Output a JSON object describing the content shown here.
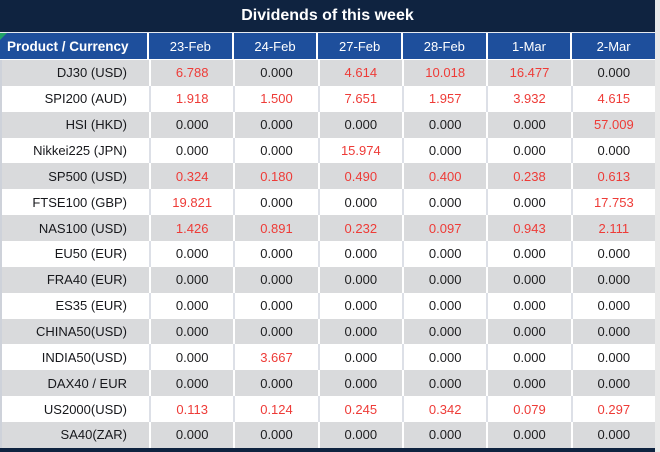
{
  "title": "Dividends of this week",
  "table": {
    "product_header": "Product / Currency",
    "date_headers": [
      "23-Feb",
      "24-Feb",
      "27-Feb",
      "28-Feb",
      "1-Mar",
      "2-Mar"
    ],
    "rows": [
      {
        "product": "DJ30 (USD)",
        "values": [
          "6.788",
          "0.000",
          "4.614",
          "10.018",
          "16.477",
          "0.000"
        ]
      },
      {
        "product": "SPI200 (AUD)",
        "values": [
          "1.918",
          "1.500",
          "7.651",
          "1.957",
          "3.932",
          "4.615"
        ]
      },
      {
        "product": "HSI (HKD)",
        "values": [
          "0.000",
          "0.000",
          "0.000",
          "0.000",
          "0.000",
          "57.009"
        ]
      },
      {
        "product": "Nikkei225 (JPN)",
        "values": [
          "0.000",
          "0.000",
          "15.974",
          "0.000",
          "0.000",
          "0.000"
        ]
      },
      {
        "product": "SP500 (USD)",
        "values": [
          "0.324",
          "0.180",
          "0.490",
          "0.400",
          "0.238",
          "0.613"
        ]
      },
      {
        "product": "FTSE100 (GBP)",
        "values": [
          "19.821",
          "0.000",
          "0.000",
          "0.000",
          "0.000",
          "17.753"
        ]
      },
      {
        "product": "NAS100 (USD)",
        "values": [
          "1.426",
          "0.891",
          "0.232",
          "0.097",
          "0.943",
          "2.111"
        ]
      },
      {
        "product": "EU50 (EUR)",
        "values": [
          "0.000",
          "0.000",
          "0.000",
          "0.000",
          "0.000",
          "0.000"
        ]
      },
      {
        "product": "FRA40 (EUR)",
        "values": [
          "0.000",
          "0.000",
          "0.000",
          "0.000",
          "0.000",
          "0.000"
        ]
      },
      {
        "product": "ES35 (EUR)",
        "values": [
          "0.000",
          "0.000",
          "0.000",
          "0.000",
          "0.000",
          "0.000"
        ]
      },
      {
        "product": "CHINA50(USD)",
        "values": [
          "0.000",
          "0.000",
          "0.000",
          "0.000",
          "0.000",
          "0.000"
        ]
      },
      {
        "product": "INDIA50(USD)",
        "values": [
          "0.000",
          "3.667",
          "0.000",
          "0.000",
          "0.000",
          "0.000"
        ]
      },
      {
        "product": "DAX40 / EUR",
        "values": [
          "0.000",
          "0.000",
          "0.000",
          "0.000",
          "0.000",
          "0.000"
        ]
      },
      {
        "product": "US2000(USD)",
        "values": [
          "0.113",
          "0.124",
          "0.245",
          "0.342",
          "0.079",
          "0.297"
        ]
      },
      {
        "product": "SA40(ZAR)",
        "values": [
          "0.000",
          "0.000",
          "0.000",
          "0.000",
          "0.000",
          "0.000"
        ]
      }
    ]
  },
  "colors": {
    "title_bg": "#0f2340",
    "header_bg": "#1e4f9c",
    "alt_row_bg": "#d9dadc",
    "positive_value": "#ee3b37",
    "zero_value": "#1d1d1f",
    "corner_marker": "#21a366"
  },
  "icons": {
    "green_corner_marker": "triangle-top-left"
  },
  "chart_data": {
    "type": "table",
    "title": "Dividends of this week",
    "columns": [
      "Product / Currency",
      "23-Feb",
      "24-Feb",
      "27-Feb",
      "28-Feb",
      "1-Mar",
      "2-Mar"
    ],
    "rows": [
      [
        "DJ30 (USD)",
        6.788,
        0.0,
        4.614,
        10.018,
        16.477,
        0.0
      ],
      [
        "SPI200 (AUD)",
        1.918,
        1.5,
        7.651,
        1.957,
        3.932,
        4.615
      ],
      [
        "HSI (HKD)",
        0.0,
        0.0,
        0.0,
        0.0,
        0.0,
        57.009
      ],
      [
        "Nikkei225 (JPN)",
        0.0,
        0.0,
        15.974,
        0.0,
        0.0,
        0.0
      ],
      [
        "SP500 (USD)",
        0.324,
        0.18,
        0.49,
        0.4,
        0.238,
        0.613
      ],
      [
        "FTSE100 (GBP)",
        19.821,
        0.0,
        0.0,
        0.0,
        0.0,
        17.753
      ],
      [
        "NAS100 (USD)",
        1.426,
        0.891,
        0.232,
        0.097,
        0.943,
        2.111
      ],
      [
        "EU50 (EUR)",
        0.0,
        0.0,
        0.0,
        0.0,
        0.0,
        0.0
      ],
      [
        "FRA40 (EUR)",
        0.0,
        0.0,
        0.0,
        0.0,
        0.0,
        0.0
      ],
      [
        "ES35 (EUR)",
        0.0,
        0.0,
        0.0,
        0.0,
        0.0,
        0.0
      ],
      [
        "CHINA50(USD)",
        0.0,
        0.0,
        0.0,
        0.0,
        0.0,
        0.0
      ],
      [
        "INDIA50(USD)",
        0.0,
        3.667,
        0.0,
        0.0,
        0.0,
        0.0
      ],
      [
        "DAX40 / EUR",
        0.0,
        0.0,
        0.0,
        0.0,
        0.0,
        0.0
      ],
      [
        "US2000(USD)",
        0.113,
        0.124,
        0.245,
        0.342,
        0.079,
        0.297
      ],
      [
        "SA40(ZAR)",
        0.0,
        0.0,
        0.0,
        0.0,
        0.0,
        0.0
      ]
    ],
    "notes": "Values shown to 3 decimals. Non-zero values rendered in red (#ee3b37); zero values in black."
  }
}
